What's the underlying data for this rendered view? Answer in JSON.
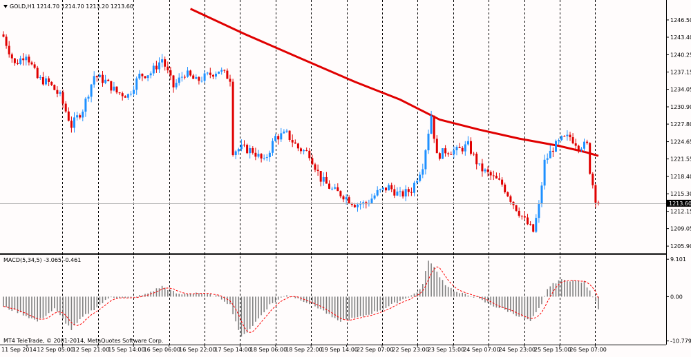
{
  "header": {
    "symbol": "GOLD,H1",
    "ohlc": "1214.70 1214.70 1213.20 1213.60",
    "menu_icon": "triangle-down-icon"
  },
  "main_axis": {
    "ticks": [
      "1246.50",
      "1243.40",
      "1240.25",
      "1237.15",
      "1234.05",
      "1230.90",
      "1227.80",
      "1224.65",
      "1221.55",
      "1218.40",
      "1215.30",
      "1212.15",
      "1209.05",
      "1205.90"
    ],
    "range": [
      1204.8,
      1248.1
    ],
    "current_price": "1213.60"
  },
  "macd": {
    "label": "MACD(5,34,5) -3.065 -0.461",
    "ticks": [
      "9.101",
      "0.00",
      "-10.779"
    ],
    "range": [
      -11.5,
      9.8
    ]
  },
  "time_axis": {
    "labels": [
      "11 Sep 2014",
      "12 Sep 05:00",
      "12 Sep 21:00",
      "15 Sep 14:00",
      "16 Sep 06:00",
      "16 Sep 22:00",
      "17 Sep 14:00",
      "18 Sep 06:00",
      "18 Sep 22:00",
      "19 Sep 14:00",
      "22 Sep 07:00",
      "22 Sep 23:00",
      "23 Sep 15:00",
      "24 Sep 07:00",
      "24 Sep 23:00",
      "25 Sep 15:00",
      "26 Sep 07:00"
    ]
  },
  "copyright": "MT4 TeleTrade, © 2001-2014, MetaQuotes Software Corp.",
  "colors": {
    "background": "#fffcfc",
    "bull": "#1e90ff",
    "bear": "#e00000",
    "moving_average": "#e00000",
    "macd_histogram": "#808080",
    "signal": "#ff0000",
    "grid": "#000000",
    "price_tag": "#000000"
  },
  "chart_data": {
    "type": "candlestick",
    "timeframe": "H1",
    "close_path": [
      [
        0,
        1243.5
      ],
      [
        4,
        1238.5
      ],
      [
        8,
        1240.5
      ],
      [
        12,
        1236.0
      ],
      [
        16,
        1235.2
      ],
      [
        20,
        1232.8
      ],
      [
        24,
        1227.5
      ],
      [
        28,
        1230.5
      ],
      [
        32,
        1236.5
      ],
      [
        36,
        1235.5
      ],
      [
        40,
        1233.5
      ],
      [
        44,
        1233.0
      ],
      [
        48,
        1236.5
      ],
      [
        52,
        1237.0
      ],
      [
        56,
        1239.5
      ],
      [
        60,
        1234.5
      ],
      [
        64,
        1237.0
      ],
      [
        68,
        1235.5
      ],
      [
        72,
        1236.5
      ],
      [
        76,
        1237.5
      ],
      [
        80,
        1236.0
      ],
      [
        81,
        1223.0
      ],
      [
        84,
        1223.5
      ],
      [
        88,
        1223.0
      ],
      [
        92,
        1221.0
      ],
      [
        96,
        1225.5
      ],
      [
        100,
        1226.0
      ],
      [
        104,
        1223.5
      ],
      [
        108,
        1222.5
      ],
      [
        112,
        1218.0
      ],
      [
        116,
        1216.0
      ],
      [
        120,
        1215.0
      ],
      [
        124,
        1213.5
      ],
      [
        128,
        1213.5
      ],
      [
        132,
        1215.5
      ],
      [
        136,
        1216.5
      ],
      [
        140,
        1215.0
      ],
      [
        144,
        1216.0
      ],
      [
        148,
        1220.5
      ],
      [
        151,
        1229.5
      ],
      [
        153,
        1222.0
      ],
      [
        156,
        1223.0
      ],
      [
        160,
        1223.0
      ],
      [
        164,
        1224.0
      ],
      [
        168,
        1220.0
      ],
      [
        172,
        1218.5
      ],
      [
        176,
        1217.0
      ],
      [
        180,
        1213.5
      ],
      [
        184,
        1210.5
      ],
      [
        187,
        1208.5
      ],
      [
        189,
        1213.0
      ],
      [
        191,
        1221.0
      ],
      [
        194,
        1223.5
      ],
      [
        197,
        1225.0
      ],
      [
        200,
        1225.5
      ],
      [
        203,
        1224.0
      ],
      [
        206,
        1224.0
      ],
      [
        207,
        1219.5
      ],
      [
        209,
        1214.5
      ],
      [
        210,
        1213.6
      ]
    ],
    "moving_average": [
      [
        66,
        1248.5
      ],
      [
        85,
        1244.0
      ],
      [
        104,
        1239.8
      ],
      [
        124,
        1235.4
      ],
      [
        140,
        1232.2
      ],
      [
        154,
        1228.6
      ],
      [
        168,
        1226.8
      ],
      [
        182,
        1225.2
      ],
      [
        196,
        1223.9
      ],
      [
        206,
        1222.7
      ],
      [
        210,
        1222.1
      ]
    ],
    "macd_path": [
      [
        0,
        -2.5
      ],
      [
        6,
        -4.0
      ],
      [
        12,
        -6.0
      ],
      [
        18,
        -3.0
      ],
      [
        24,
        -8.0
      ],
      [
        28,
        -5.0
      ],
      [
        32,
        -3.0
      ],
      [
        38,
        0.0
      ],
      [
        44,
        -0.5
      ],
      [
        50,
        0.5
      ],
      [
        56,
        2.5
      ],
      [
        62,
        0.5
      ],
      [
        68,
        1.0
      ],
      [
        76,
        0.0
      ],
      [
        80,
        -2.0
      ],
      [
        84,
        -10.0
      ],
      [
        88,
        -7.0
      ],
      [
        94,
        -2.0
      ],
      [
        100,
        0.5
      ],
      [
        106,
        -1.0
      ],
      [
        112,
        -3.0
      ],
      [
        118,
        -6.0
      ],
      [
        126,
        -5.0
      ],
      [
        134,
        -3.0
      ],
      [
        140,
        -1.0
      ],
      [
        146,
        1.0
      ],
      [
        148,
        3.0
      ],
      [
        150,
        9.0
      ],
      [
        152,
        7.0
      ],
      [
        156,
        3.0
      ],
      [
        160,
        1.0
      ],
      [
        166,
        0.0
      ],
      [
        172,
        -2.0
      ],
      [
        178,
        -3.5
      ],
      [
        186,
        -6.0
      ],
      [
        190,
        -2.0
      ],
      [
        192,
        2.0
      ],
      [
        196,
        4.0
      ],
      [
        200,
        4.0
      ],
      [
        205,
        3.5
      ],
      [
        209,
        -1.0
      ],
      [
        210,
        -3.065
      ]
    ],
    "signal_last": -0.461
  }
}
